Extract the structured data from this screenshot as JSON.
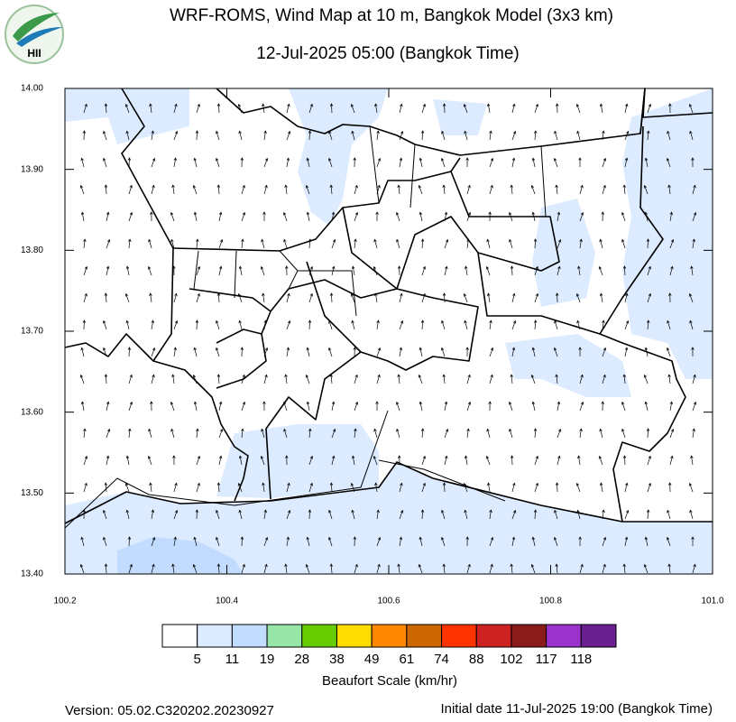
{
  "header": {
    "title": "WRF-ROMS, Wind Map at 10 m, Bangkok Model (3x3 km)",
    "subtitle": "12-Jul-2025 05:00 (Bangkok Time)",
    "logo_text": "HII"
  },
  "map": {
    "xlim": [
      100.2,
      101.0
    ],
    "ylim": [
      13.4,
      14.0
    ],
    "xticks": [
      100.2,
      100.4,
      100.6,
      100.8,
      {
        "value": 101,
        "label": "101.0"
      }
    ],
    "yticks": [
      {
        "value": 13.4,
        "label": "13.40"
      },
      {
        "value": 13.5,
        "label": "13.50"
      },
      {
        "value": 13.6,
        "label": "13.60"
      },
      {
        "value": 13.7,
        "label": "13.70"
      },
      {
        "value": 13.8,
        "label": "13.80"
      },
      {
        "value": 13.9,
        "label": "13.90"
      },
      {
        "value": 14,
        "label": "14.00"
      }
    ]
  },
  "colorbar": {
    "title": "Beaufort Scale (km/hr)",
    "colors": [
      "#ffffff",
      "#dcebff",
      "#c2dcff",
      "#98e5a8",
      "#66cc00",
      "#ffdd00",
      "#ff8800",
      "#cc6600",
      "#ff3300",
      "#cc2222",
      "#8b1a1a",
      "#9933cc",
      "#6a2090"
    ],
    "labels": [
      5,
      11,
      19,
      28,
      38,
      49,
      61,
      74,
      88,
      102,
      117,
      118
    ]
  },
  "footer": {
    "version": "Version: 05.02.C320202.20230927",
    "initial_date": "Initial date 11-Jul-2025 19:00 (Bangkok Time)"
  }
}
